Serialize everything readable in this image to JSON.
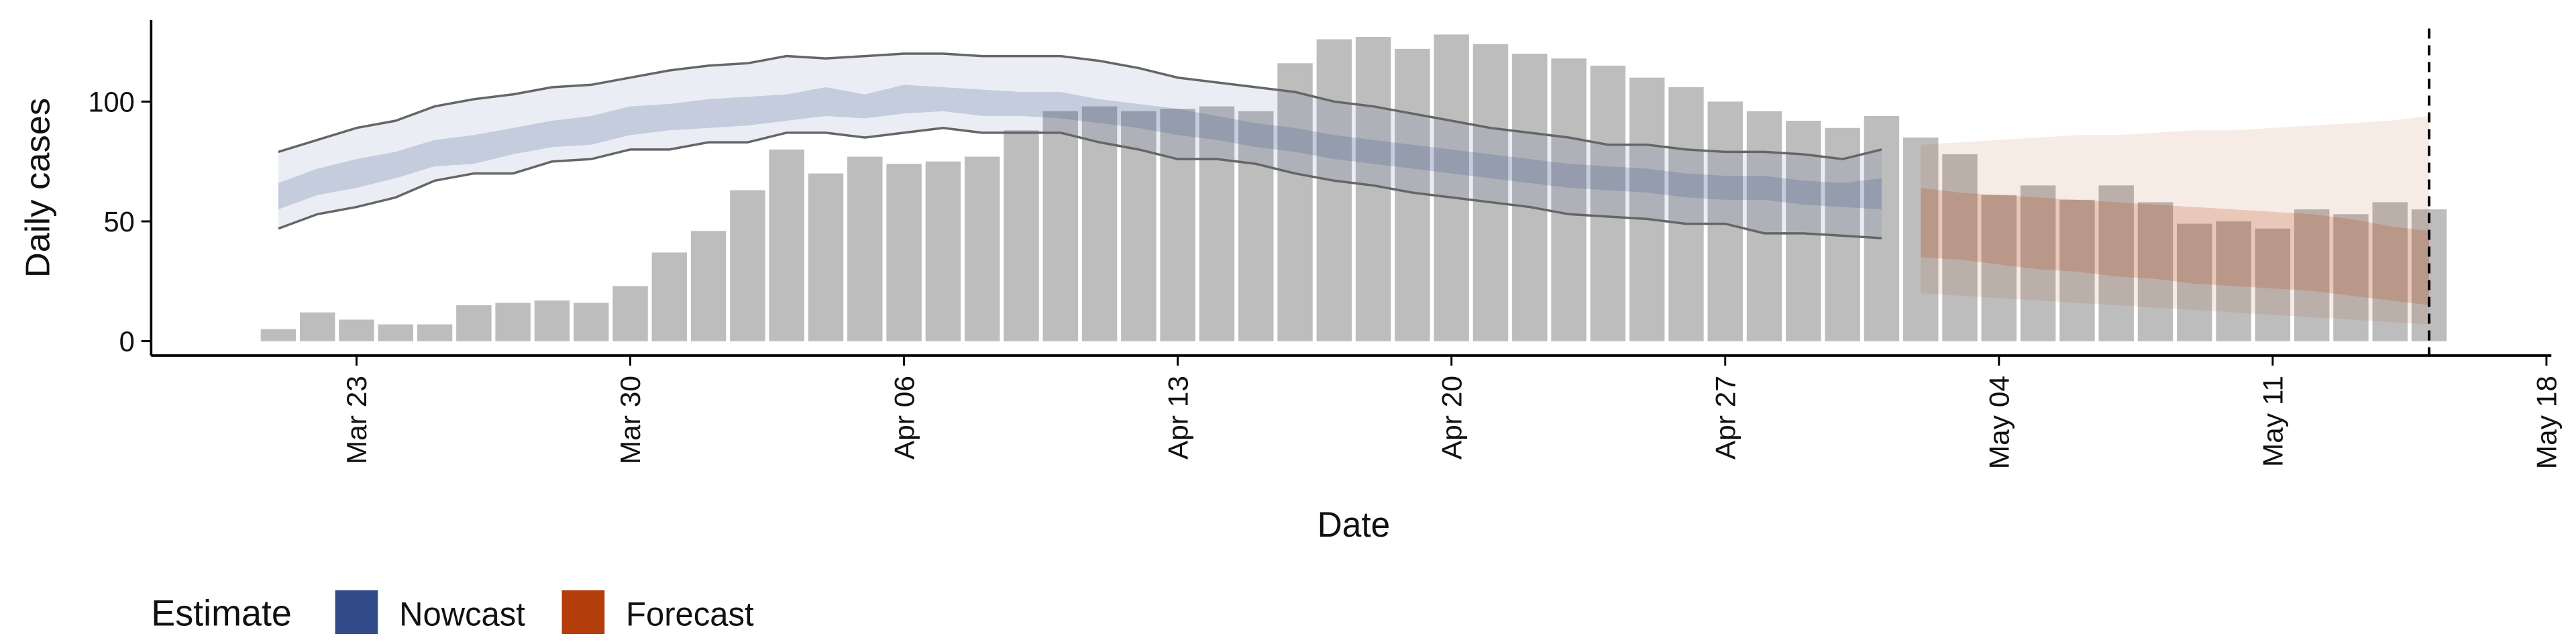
{
  "chart_data": {
    "type": "bar",
    "x_label": "Date",
    "y_label": "Daily cases",
    "bar_color": "#bdbdbd",
    "x": [
      "03-21",
      "03-22",
      "03-23",
      "03-24",
      "03-25",
      "03-26",
      "03-27",
      "03-28",
      "03-29",
      "03-30",
      "03-31",
      "04-01",
      "04-02",
      "04-03",
      "04-04",
      "04-05",
      "04-06",
      "04-07",
      "04-08",
      "04-09",
      "04-10",
      "04-11",
      "04-12",
      "04-13",
      "04-14",
      "04-15",
      "04-16",
      "04-17",
      "04-18",
      "04-19",
      "04-20",
      "04-21",
      "04-22",
      "04-23",
      "04-24",
      "04-25",
      "04-26",
      "04-27",
      "04-28",
      "04-29",
      "04-30",
      "05-01",
      "05-02",
      "05-03",
      "05-04",
      "05-05",
      "05-06",
      "05-07",
      "05-08",
      "05-09",
      "05-10",
      "05-11",
      "05-12",
      "05-13",
      "05-14",
      "05-15"
    ],
    "values": [
      5,
      12,
      9,
      7,
      7,
      15,
      16,
      17,
      16,
      23,
      37,
      46,
      63,
      80,
      70,
      77,
      74,
      75,
      77,
      88,
      96,
      98,
      96,
      97,
      98,
      96,
      116,
      126,
      127,
      122,
      128,
      124,
      120,
      118,
      115,
      110,
      106,
      100,
      96,
      92,
      89,
      94,
      85,
      78,
      61,
      65,
      59,
      65,
      58,
      49,
      50,
      47,
      55,
      53,
      58,
      55
    ],
    "legend_title": "Estimate",
    "estimates": [
      {
        "name": "Nowcast",
        "color": "#324c89",
        "x": [
          "03-21",
          "03-22",
          "03-23",
          "03-24",
          "03-25",
          "03-26",
          "03-27",
          "03-28",
          "03-29",
          "03-30",
          "03-31",
          "04-01",
          "04-02",
          "04-03",
          "04-04",
          "04-05",
          "04-06",
          "04-07",
          "04-08",
          "04-09",
          "04-10",
          "04-11",
          "04-12",
          "04-13",
          "04-14",
          "04-15",
          "04-16",
          "04-17",
          "04-18",
          "04-19",
          "04-20",
          "04-21",
          "04-22",
          "04-23",
          "04-24",
          "04-25",
          "04-26",
          "04-27",
          "04-28",
          "04-29",
          "04-30",
          "05-01"
        ],
        "upper_90": [
          79,
          84,
          89,
          92,
          98,
          101,
          103,
          106,
          107,
          110,
          113,
          115,
          116,
          119,
          118,
          119,
          120,
          120,
          119,
          119,
          119,
          117,
          114,
          110,
          108,
          106,
          104,
          100,
          98,
          95,
          92,
          89,
          87,
          85,
          82,
          82,
          80,
          79,
          79,
          78,
          76,
          80
        ],
        "lower_90": [
          47,
          53,
          56,
          60,
          67,
          70,
          70,
          75,
          76,
          80,
          80,
          83,
          83,
          87,
          87,
          85,
          87,
          89,
          87,
          87,
          87,
          83,
          80,
          76,
          76,
          74,
          70,
          67,
          65,
          62,
          60,
          58,
          56,
          53,
          52,
          51,
          49,
          49,
          45,
          45,
          44,
          43
        ],
        "upper_50": [
          66,
          72,
          76,
          79,
          84,
          86,
          89,
          92,
          94,
          98,
          99,
          101,
          102,
          103,
          106,
          103,
          107,
          106,
          105,
          104,
          104,
          101,
          99,
          97,
          94,
          91,
          89,
          86,
          84,
          82,
          80,
          78,
          76,
          74,
          73,
          72,
          70,
          69,
          69,
          67,
          66,
          68
        ],
        "lower_50": [
          55,
          61,
          64,
          68,
          73,
          74,
          78,
          81,
          82,
          86,
          88,
          89,
          90,
          92,
          94,
          93,
          95,
          96,
          94,
          94,
          93,
          91,
          89,
          86,
          84,
          81,
          79,
          76,
          74,
          72,
          70,
          68,
          66,
          64,
          63,
          62,
          60,
          59,
          59,
          57,
          56,
          55
        ]
      },
      {
        "name": "Forecast",
        "color": "#b33d0b",
        "x": [
          "05-02",
          "05-03",
          "05-04",
          "05-05",
          "05-06",
          "05-07",
          "05-08",
          "05-09",
          "05-10",
          "05-11",
          "05-12",
          "05-13",
          "05-14",
          "05-15"
        ],
        "upper_90": [
          82,
          83,
          84,
          85,
          86,
          86,
          87,
          88,
          88,
          89,
          90,
          91,
          92,
          94
        ],
        "lower_90": [
          20,
          19,
          18,
          17,
          16,
          15,
          14,
          13,
          12,
          11,
          10,
          9,
          8,
          7
        ],
        "upper_50": [
          64,
          62,
          61,
          60,
          59,
          58,
          57,
          56,
          55,
          54,
          53,
          51,
          48,
          46
        ],
        "lower_50": [
          35,
          34,
          32,
          30,
          29,
          27,
          26,
          24,
          23,
          22,
          21,
          19,
          17,
          15
        ]
      }
    ],
    "vline": "05-15",
    "xlim": [
      "03-18",
      "05-18"
    ],
    "xticks": [
      {
        "value": "03-23",
        "label": "Mar 23"
      },
      {
        "value": "03-30",
        "label": "Mar 30"
      },
      {
        "value": "04-06",
        "label": "Apr 06"
      },
      {
        "value": "04-13",
        "label": "Apr 13"
      },
      {
        "value": "04-20",
        "label": "Apr 20"
      },
      {
        "value": "04-27",
        "label": "Apr 27"
      },
      {
        "value": "05-04",
        "label": "May 04"
      },
      {
        "value": "05-11",
        "label": "May 11"
      },
      {
        "value": "05-18",
        "label": "May 18"
      }
    ],
    "ylim": [
      -6,
      134
    ],
    "yticks": [
      0,
      50,
      100
    ]
  }
}
